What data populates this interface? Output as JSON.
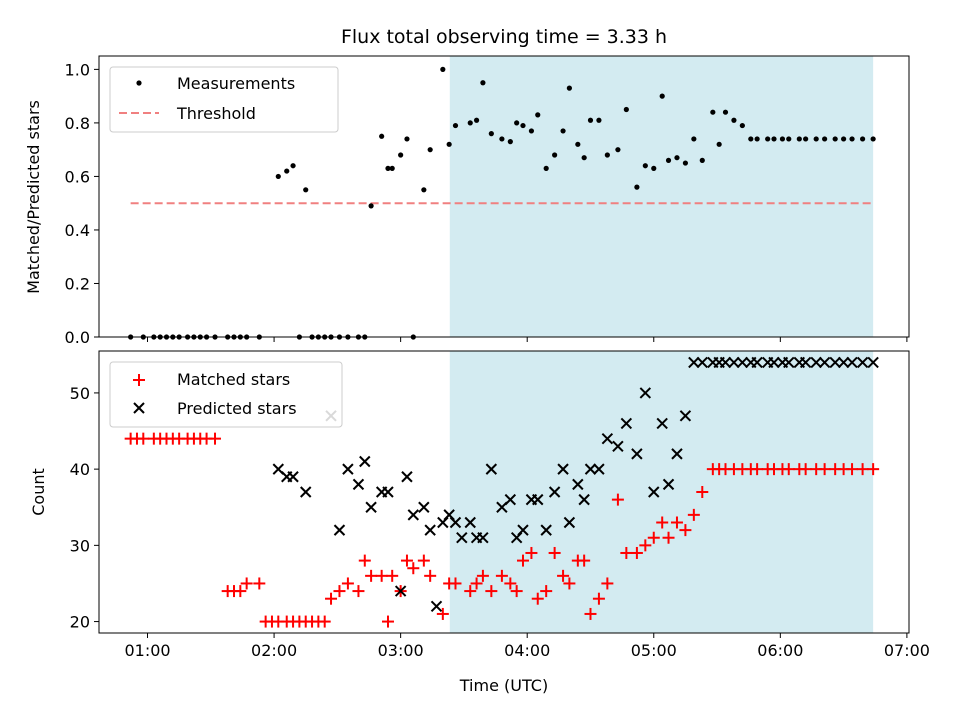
{
  "chart_data": {
    "title": "Flux total observing time = 3.33 h",
    "xlabel": "Time (UTC)",
    "x_ticks": [
      "01:00",
      "02:00",
      "03:00",
      "04:00",
      "05:00",
      "06:00",
      "07:00"
    ],
    "x_tick_values": [
      60,
      120,
      180,
      240,
      300,
      360,
      420
    ],
    "xlim": [
      37,
      421
    ],
    "shaded_interval": {
      "start": 203.3,
      "end": 404.0,
      "color": "#d3ebf1"
    },
    "top": {
      "type": "scatter",
      "ylabel": "Matched/Predicted stars",
      "ylim": [
        0,
        1.05
      ],
      "y_ticks": [
        0.0,
        0.2,
        0.4,
        0.6,
        0.8,
        1.0
      ],
      "y_tick_labels": [
        "0.0",
        "0.2",
        "0.4",
        "0.6",
        "0.8",
        "1.0"
      ],
      "legend": [
        "Measurements",
        "Threshold"
      ],
      "legend_position": "upper-left",
      "threshold": {
        "name": "Threshold",
        "value": 0.5,
        "x_range": [
          52,
          404
        ],
        "color": "#f08080"
      },
      "series": [
        {
          "name": "Measurements",
          "color": "#000000",
          "x": [
            52,
            58,
            63,
            66,
            69,
            72,
            75,
            79,
            82,
            85,
            88,
            92,
            98,
            101,
            104,
            107,
            113,
            122,
            126,
            129,
            132,
            135,
            138,
            141,
            144,
            147,
            151,
            155,
            160,
            163,
            166,
            171,
            174,
            176,
            180,
            183,
            186,
            191,
            194,
            200,
            203,
            206,
            213,
            216,
            219,
            223,
            228,
            232,
            235,
            238,
            242,
            245,
            249,
            253,
            257,
            260,
            264,
            267,
            270,
            274,
            278,
            283,
            287,
            292,
            296,
            300,
            304,
            307,
            311,
            315,
            319,
            323,
            328,
            331,
            334,
            338,
            342,
            346,
            349,
            354,
            357,
            361,
            364,
            369,
            372,
            377,
            381,
            386,
            390,
            394,
            399,
            404
          ],
          "y": [
            0,
            0,
            0,
            0,
            0,
            0,
            0,
            0,
            0,
            0,
            0,
            0,
            0,
            0,
            0,
            0,
            0,
            0.6,
            0.62,
            0.64,
            0,
            0.55,
            0,
            0,
            0,
            0,
            0,
            0,
            0,
            0,
            0.49,
            0.75,
            0.63,
            0.63,
            0.68,
            0.74,
            0,
            0.55,
            0.7,
            1.0,
            0.72,
            0.79,
            0.8,
            0.81,
            0.95,
            0.76,
            0.74,
            0.73,
            0.8,
            0.79,
            0.77,
            0.83,
            0.63,
            0.68,
            0.77,
            0.93,
            0.72,
            0.67,
            0.81,
            0.81,
            0.68,
            0.7,
            0.85,
            0.56,
            0.64,
            0.63,
            0.9,
            0.66,
            0.67,
            0.65,
            0.74,
            0.66,
            0.84,
            0.72,
            0.84,
            0.81,
            0.79,
            0.74,
            0.74,
            0.74,
            0.74,
            0.74,
            0.74,
            0.74,
            0.74,
            0.74,
            0.74,
            0.74,
            0.74,
            0.74,
            0.74,
            0.74
          ]
        }
      ]
    },
    "bottom": {
      "type": "scatter",
      "ylabel": "Count",
      "ylim": [
        18.5,
        55.5
      ],
      "y_ticks": [
        20,
        30,
        40,
        50
      ],
      "y_tick_labels": [
        "20",
        "30",
        "40",
        "50"
      ],
      "legend": [
        "Matched stars",
        "Predicted stars"
      ],
      "legend_position": "upper-left",
      "series": [
        {
          "name": "Matched stars",
          "marker": "plus",
          "color": "#ff0000",
          "x": [
            52,
            55,
            58,
            63,
            66,
            69,
            72,
            75,
            79,
            82,
            85,
            88,
            92,
            98,
            101,
            104,
            107,
            113,
            116,
            119,
            122,
            126,
            129,
            132,
            135,
            138,
            141,
            144,
            147,
            151,
            155,
            160,
            163,
            166,
            171,
            174,
            176,
            180,
            183,
            186,
            191,
            194,
            200,
            203,
            206,
            213,
            216,
            219,
            223,
            228,
            232,
            235,
            238,
            242,
            245,
            249,
            253,
            257,
            260,
            264,
            267,
            270,
            274,
            278,
            283,
            287,
            292,
            296,
            300,
            304,
            307,
            311,
            315,
            319,
            323,
            328,
            331,
            334,
            338,
            342,
            346,
            349,
            354,
            357,
            361,
            364,
            369,
            372,
            377,
            381,
            386,
            390,
            394,
            399,
            404
          ],
          "y": [
            44,
            44,
            44,
            44,
            44,
            44,
            44,
            44,
            44,
            44,
            44,
            44,
            44,
            24,
            24,
            24,
            25,
            25,
            20,
            20,
            20,
            20,
            20,
            20,
            20,
            20,
            20,
            20,
            23,
            24,
            25,
            24,
            28,
            26,
            26,
            20,
            26,
            24,
            28,
            27,
            28,
            26,
            21,
            25,
            25,
            24,
            25,
            26,
            24,
            26,
            25,
            24,
            28,
            29,
            23,
            24,
            29,
            26,
            25,
            28,
            28,
            21,
            23,
            25,
            36,
            29,
            29,
            30,
            31,
            33,
            31,
            33,
            32,
            34,
            37,
            40,
            40,
            40,
            40,
            40,
            40,
            40,
            40,
            40,
            40,
            40,
            40,
            40,
            40,
            40,
            40,
            40,
            40,
            40,
            40
          ],
          "count": 95
        },
        {
          "name": "Predicted stars",
          "marker": "x",
          "color": "#000000",
          "x": [
            122,
            126,
            129,
            135,
            147,
            151,
            155,
            160,
            163,
            166,
            171,
            174,
            180,
            183,
            186,
            191,
            194,
            197,
            200,
            203,
            206,
            209,
            213,
            216,
            219,
            223,
            228,
            232,
            235,
            238,
            242,
            245,
            249,
            253,
            257,
            260,
            264,
            267,
            270,
            274,
            278,
            283,
            287,
            292,
            296,
            300,
            304,
            307,
            311,
            315,
            319,
            323,
            328,
            331,
            334,
            338,
            342,
            346,
            349,
            354,
            357,
            361,
            364,
            369,
            372,
            377,
            381,
            386,
            390,
            394,
            399,
            404
          ],
          "y": [
            40,
            39,
            39,
            37,
            47,
            32,
            40,
            38,
            41,
            35,
            37,
            37,
            24,
            39,
            34,
            35,
            32,
            22,
            33,
            34,
            33,
            31,
            33,
            31,
            31,
            40,
            35,
            36,
            31,
            32,
            36,
            36,
            32,
            37,
            40,
            33,
            38,
            36,
            40,
            40,
            44,
            43,
            46,
            42,
            50,
            37,
            46,
            38,
            42,
            47,
            54,
            54,
            54,
            54,
            54,
            54,
            54,
            54,
            54,
            54,
            54,
            54,
            54,
            54,
            54,
            54,
            54,
            54,
            54,
            54,
            54,
            54
          ]
        }
      ]
    }
  }
}
